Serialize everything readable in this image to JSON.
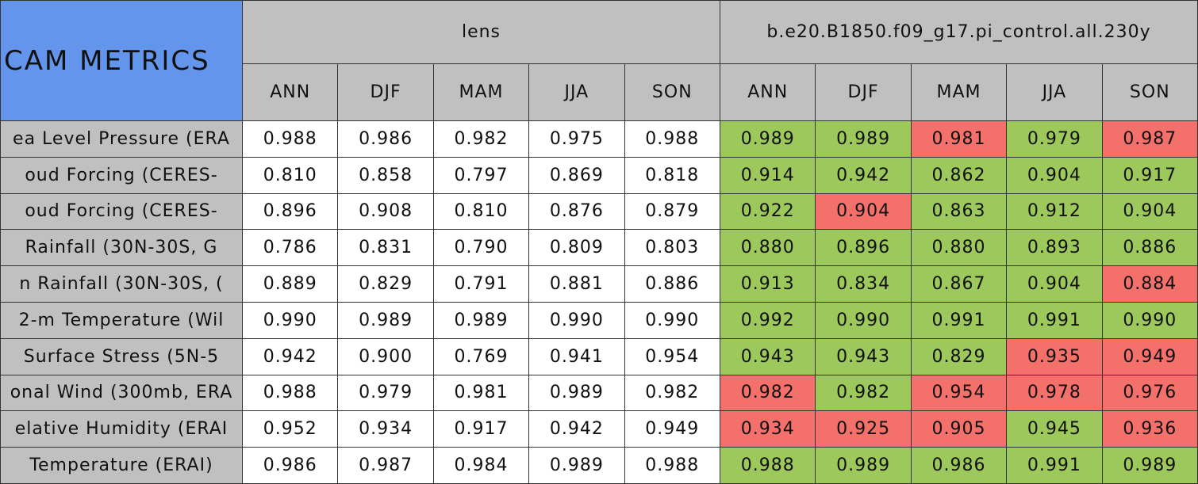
{
  "table": {
    "title": "CAM METRICS",
    "groups": [
      {
        "name": "lens",
        "seasons": [
          "ANN",
          "DJF",
          "MAM",
          "JJA",
          "SON"
        ]
      },
      {
        "name": "b.e20.B1850.f09_g17.pi_control.all.230y",
        "seasons": [
          "ANN",
          "DJF",
          "MAM",
          "JJA",
          "SON"
        ]
      }
    ],
    "rows": [
      {
        "label": "ea Level Pressure (ERA",
        "values": [
          "0.988",
          "0.986",
          "0.982",
          "0.975",
          "0.988",
          "0.989",
          "0.989",
          "0.981",
          "0.979",
          "0.987"
        ],
        "colors": [
          "#ffffff",
          "#ffffff",
          "#ffffff",
          "#ffffff",
          "#ffffff",
          "#9dc85c",
          "#9dc85c",
          "#f4716b",
          "#9dc85c",
          "#f4716b"
        ]
      },
      {
        "label": "oud Forcing (CERES-",
        "values": [
          "0.810",
          "0.858",
          "0.797",
          "0.869",
          "0.818",
          "0.914",
          "0.942",
          "0.862",
          "0.904",
          "0.917"
        ],
        "colors": [
          "#ffffff",
          "#ffffff",
          "#ffffff",
          "#ffffff",
          "#ffffff",
          "#9dc85c",
          "#9dc85c",
          "#9dc85c",
          "#9dc85c",
          "#9dc85c"
        ]
      },
      {
        "label": "oud Forcing (CERES-",
        "values": [
          "0.896",
          "0.908",
          "0.810",
          "0.876",
          "0.879",
          "0.922",
          "0.904",
          "0.863",
          "0.912",
          "0.904"
        ],
        "colors": [
          "#ffffff",
          "#ffffff",
          "#ffffff",
          "#ffffff",
          "#ffffff",
          "#9dc85c",
          "#f4716b",
          "#9dc85c",
          "#9dc85c",
          "#9dc85c"
        ]
      },
      {
        "label": "Rainfall (30N-30S, G",
        "values": [
          "0.786",
          "0.831",
          "0.790",
          "0.809",
          "0.803",
          "0.880",
          "0.896",
          "0.880",
          "0.893",
          "0.886"
        ],
        "colors": [
          "#ffffff",
          "#ffffff",
          "#ffffff",
          "#ffffff",
          "#ffffff",
          "#9dc85c",
          "#9dc85c",
          "#9dc85c",
          "#9dc85c",
          "#9dc85c"
        ]
      },
      {
        "label": "n Rainfall (30N-30S, (",
        "values": [
          "0.889",
          "0.829",
          "0.791",
          "0.881",
          "0.886",
          "0.913",
          "0.834",
          "0.867",
          "0.904",
          "0.884"
        ],
        "colors": [
          "#ffffff",
          "#ffffff",
          "#ffffff",
          "#ffffff",
          "#ffffff",
          "#9dc85c",
          "#9dc85c",
          "#9dc85c",
          "#9dc85c",
          "#f4716b"
        ]
      },
      {
        "label": "2-m Temperature (Wil",
        "values": [
          "0.990",
          "0.989",
          "0.989",
          "0.990",
          "0.990",
          "0.992",
          "0.990",
          "0.991",
          "0.991",
          "0.990"
        ],
        "colors": [
          "#ffffff",
          "#ffffff",
          "#ffffff",
          "#ffffff",
          "#ffffff",
          "#9dc85c",
          "#9dc85c",
          "#9dc85c",
          "#9dc85c",
          "#9dc85c"
        ]
      },
      {
        "label": "Surface Stress (5N-5",
        "values": [
          "0.942",
          "0.900",
          "0.769",
          "0.941",
          "0.954",
          "0.943",
          "0.943",
          "0.829",
          "0.935",
          "0.949"
        ],
        "colors": [
          "#ffffff",
          "#ffffff",
          "#ffffff",
          "#ffffff",
          "#ffffff",
          "#9dc85c",
          "#9dc85c",
          "#9dc85c",
          "#f4716b",
          "#f4716b"
        ]
      },
      {
        "label": "onal Wind (300mb, ERA",
        "values": [
          "0.988",
          "0.979",
          "0.981",
          "0.989",
          "0.982",
          "0.982",
          "0.982",
          "0.954",
          "0.978",
          "0.976"
        ],
        "colors": [
          "#ffffff",
          "#ffffff",
          "#ffffff",
          "#ffffff",
          "#ffffff",
          "#f4716b",
          "#9dc85c",
          "#f4716b",
          "#f4716b",
          "#f4716b"
        ]
      },
      {
        "label": "elative Humidity (ERAI",
        "values": [
          "0.952",
          "0.934",
          "0.917",
          "0.942",
          "0.949",
          "0.934",
          "0.925",
          "0.905",
          "0.945",
          "0.936"
        ],
        "colors": [
          "#ffffff",
          "#ffffff",
          "#ffffff",
          "#ffffff",
          "#ffffff",
          "#f4716b",
          "#f4716b",
          "#f4716b",
          "#9dc85c",
          "#f4716b"
        ]
      },
      {
        "label": "Temperature (ERAI)",
        "values": [
          "0.986",
          "0.987",
          "0.984",
          "0.989",
          "0.988",
          "0.988",
          "0.989",
          "0.986",
          "0.991",
          "0.989"
        ],
        "colors": [
          "#ffffff",
          "#ffffff",
          "#ffffff",
          "#ffffff",
          "#ffffff",
          "#9dc85c",
          "#9dc85c",
          "#9dc85c",
          "#9dc85c",
          "#9dc85c"
        ]
      }
    ]
  }
}
